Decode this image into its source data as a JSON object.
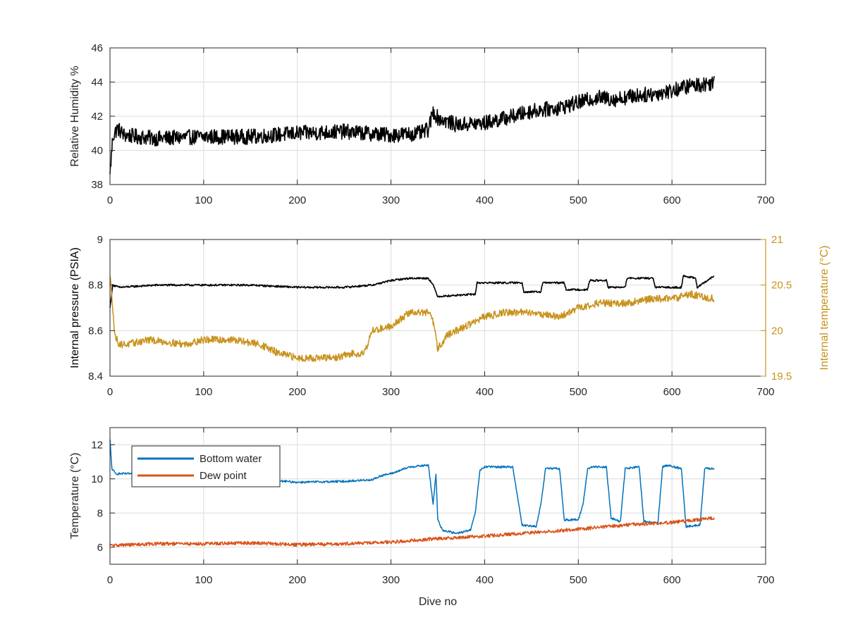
{
  "chart_data": [
    {
      "type": "line",
      "xlim": [
        0,
        700
      ],
      "xticks": [
        "0",
        "100",
        "200",
        "300",
        "400",
        "500",
        "600",
        "700"
      ],
      "ylabel": "Relative Humidity %",
      "ylim": [
        38,
        46
      ],
      "yticks": [
        "38",
        "40",
        "42",
        "44",
        "46"
      ],
      "grid": true,
      "series": [
        {
          "color": "#000000",
          "noise": 0.45,
          "x": [
            0,
            3,
            8,
            15,
            30,
            50,
            100,
            150,
            200,
            250,
            300,
            330,
            340,
            345,
            350,
            370,
            400,
            430,
            450,
            480,
            500,
            520,
            540,
            560,
            580,
            600,
            620,
            640,
            645
          ],
          "y": [
            38.6,
            40.8,
            41.3,
            40.9,
            40.8,
            40.7,
            40.8,
            40.8,
            41.0,
            41.1,
            40.9,
            41.0,
            41.2,
            42.3,
            41.9,
            41.5,
            41.6,
            42.0,
            42.3,
            42.5,
            42.8,
            43.1,
            43.0,
            43.2,
            43.3,
            43.5,
            43.8,
            43.9,
            44.1
          ]
        }
      ]
    },
    {
      "type": "line",
      "xlim": [
        0,
        700
      ],
      "xticks": [
        "0",
        "100",
        "200",
        "300",
        "400",
        "500",
        "600",
        "700"
      ],
      "ylabel": "Internal pressure (PSIA)",
      "ylim": [
        8.4,
        9.0
      ],
      "yticks": [
        "8.4",
        "8.6",
        "8.8",
        "9"
      ],
      "y2label": "Internal temperature (°C)",
      "y2lim": [
        19.5,
        21
      ],
      "y2ticks": [
        "19.5",
        "20",
        "20.5",
        "21"
      ],
      "grid": true,
      "series": [
        {
          "color": "#000000",
          "axis": "left",
          "noise": 0.004,
          "x": [
            0,
            3,
            10,
            50,
            100,
            150,
            200,
            250,
            280,
            300,
            320,
            340,
            345,
            350,
            390,
            392,
            440,
            442,
            460,
            462,
            485,
            487,
            510,
            512,
            530,
            532,
            550,
            552,
            580,
            582,
            610,
            612,
            625,
            627,
            645
          ],
          "y": [
            8.7,
            8.8,
            8.79,
            8.8,
            8.8,
            8.8,
            8.79,
            8.79,
            8.8,
            8.82,
            8.83,
            8.83,
            8.8,
            8.75,
            8.76,
            8.81,
            8.81,
            8.77,
            8.77,
            8.81,
            8.81,
            8.78,
            8.78,
            8.82,
            8.82,
            8.79,
            8.79,
            8.83,
            8.83,
            8.79,
            8.79,
            8.84,
            8.83,
            8.79,
            8.84
          ]
        },
        {
          "color": "#C8921C",
          "axis": "right",
          "noise": 0.04,
          "x": [
            0,
            2,
            5,
            10,
            20,
            40,
            80,
            100,
            130,
            160,
            170,
            180,
            200,
            220,
            240,
            260,
            270,
            275,
            280,
            300,
            320,
            340,
            345,
            350,
            360,
            380,
            400,
            420,
            450,
            480,
            500,
            520,
            550,
            580,
            600,
            620,
            645
          ],
          "y": [
            20.6,
            20.4,
            19.95,
            19.85,
            19.85,
            19.9,
            19.85,
            19.9,
            19.9,
            19.85,
            19.8,
            19.75,
            19.7,
            19.7,
            19.7,
            19.75,
            19.75,
            19.85,
            20.0,
            20.05,
            20.2,
            20.2,
            20.1,
            19.8,
            19.95,
            20.05,
            20.15,
            20.2,
            20.2,
            20.15,
            20.25,
            20.3,
            20.3,
            20.35,
            20.35,
            20.4,
            20.35
          ]
        }
      ]
    },
    {
      "type": "line",
      "xlim": [
        0,
        700
      ],
      "xticks": [
        "0",
        "100",
        "200",
        "300",
        "400",
        "500",
        "600",
        "700"
      ],
      "xlabel": "Dive no",
      "ylabel": "Temperature (°C)",
      "ylim": [
        5,
        13
      ],
      "yticks": [
        "6",
        "8",
        "10",
        "12"
      ],
      "grid": true,
      "legend": "top-left",
      "series": [
        {
          "name": "Bottom water",
          "color": "#0072BD",
          "noise": 0.06,
          "x": [
            0,
            2,
            6,
            20,
            50,
            100,
            150,
            200,
            250,
            280,
            290,
            300,
            320,
            340,
            345,
            348,
            350,
            355,
            370,
            385,
            390,
            395,
            400,
            420,
            430,
            435,
            440,
            455,
            460,
            465,
            480,
            485,
            500,
            505,
            510,
            515,
            530,
            535,
            545,
            550,
            565,
            570,
            585,
            590,
            595,
            610,
            615,
            630,
            635,
            645
          ],
          "y": [
            12.3,
            10.6,
            10.3,
            10.3,
            10.3,
            10.3,
            10.0,
            9.8,
            9.85,
            9.95,
            10.2,
            10.3,
            10.7,
            10.8,
            8.5,
            10.3,
            7.6,
            7.0,
            6.8,
            7.0,
            8.0,
            10.5,
            10.7,
            10.7,
            10.7,
            9.0,
            7.3,
            7.2,
            8.5,
            10.6,
            10.6,
            7.6,
            7.6,
            8.5,
            10.6,
            10.7,
            10.7,
            7.7,
            7.5,
            10.6,
            10.7,
            7.5,
            7.4,
            10.7,
            10.8,
            10.6,
            7.2,
            7.3,
            10.6,
            10.6
          ]
        },
        {
          "name": "Dew point",
          "color": "#D95319",
          "noise": 0.1,
          "x": [
            0,
            50,
            100,
            150,
            200,
            250,
            300,
            350,
            400,
            450,
            500,
            550,
            600,
            645
          ],
          "y": [
            6.1,
            6.2,
            6.2,
            6.25,
            6.15,
            6.2,
            6.3,
            6.5,
            6.65,
            6.85,
            7.05,
            7.3,
            7.45,
            7.7
          ]
        }
      ]
    }
  ]
}
